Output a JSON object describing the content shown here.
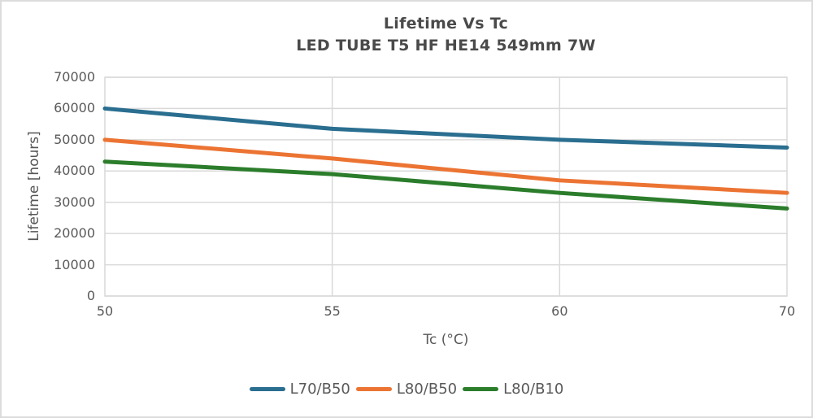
{
  "window": {
    "background": "#ffffff",
    "frame_border_color": "#dcdcdc"
  },
  "chart_data": {
    "type": "line",
    "title": "Lifetime Vs Tc",
    "subtitle": "LED TUBE T5 HF HE14 549mm 7W",
    "xlabel": "Tc (°C)",
    "ylabel": "Lifetime [hours]",
    "categories": [
      50,
      55,
      60,
      70
    ],
    "x_tick_labels": [
      "50",
      "55",
      "60",
      "70"
    ],
    "y_ticks": [
      0,
      10000,
      20000,
      30000,
      40000,
      50000,
      60000,
      70000
    ],
    "ylim": [
      0,
      70000
    ],
    "grid": true,
    "legend_position": "bottom-center",
    "series": [
      {
        "name": "L70/B50",
        "color": "#2a6e90",
        "values": [
          60000,
          53500,
          50000,
          47500
        ]
      },
      {
        "name": "L80/B50",
        "color": "#ec7433",
        "values": [
          50000,
          44000,
          37000,
          33000
        ]
      },
      {
        "name": "L80/B10",
        "color": "#2b7d2b",
        "values": [
          43000,
          39000,
          33000,
          28000
        ]
      }
    ],
    "title_color": "#4a4a4a",
    "axis_text_color": "#595959",
    "grid_color": "#d9d9d9",
    "line_width": 5
  }
}
